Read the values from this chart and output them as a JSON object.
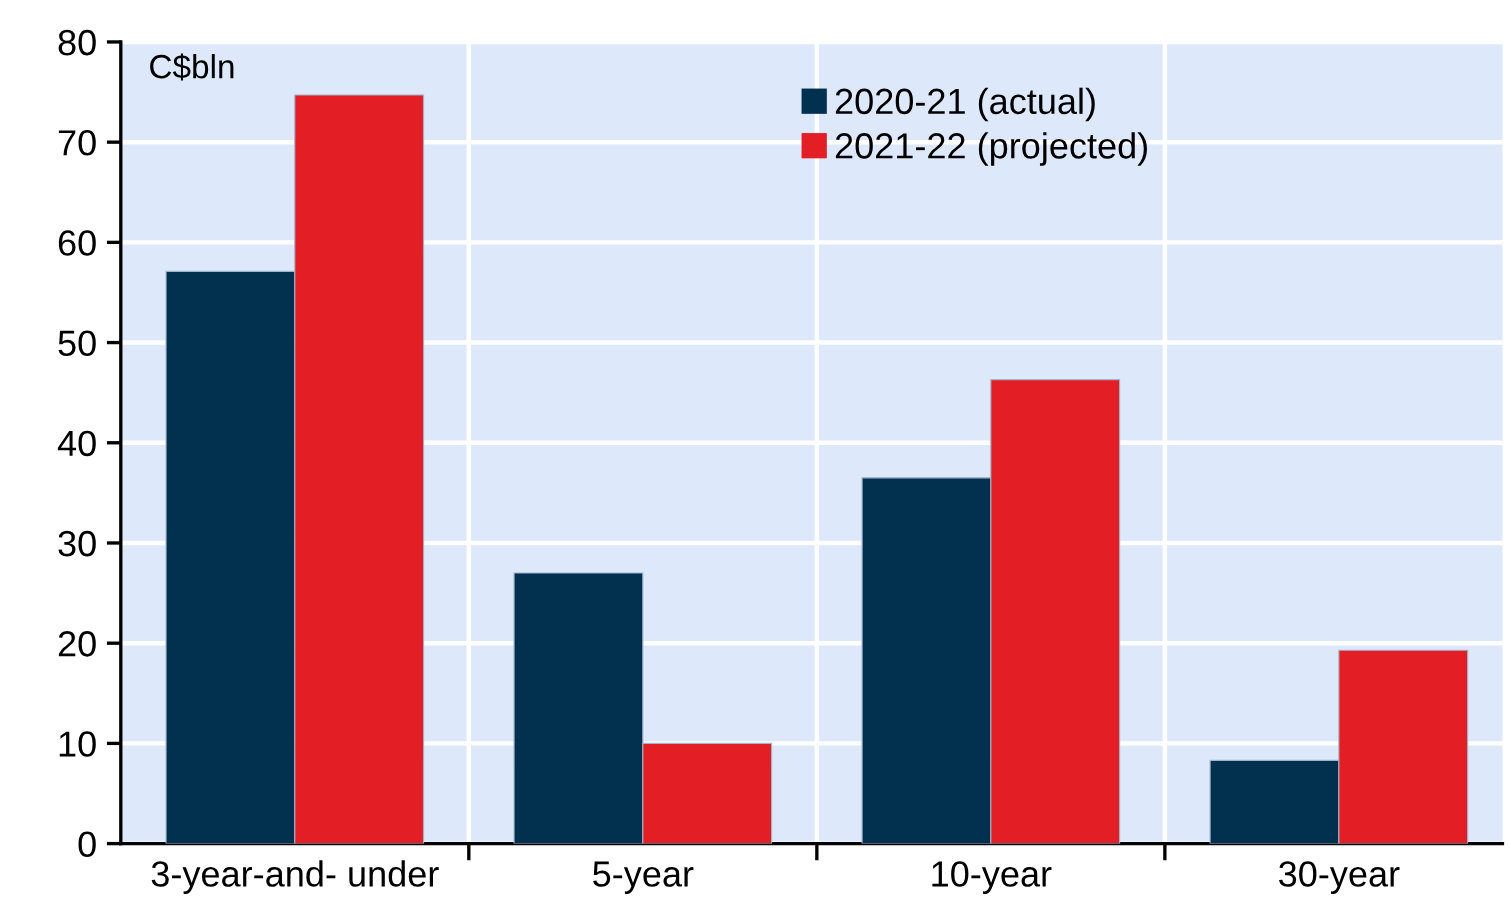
{
  "chart_data": {
    "type": "bar",
    "ylabel": "C$bln",
    "categories": [
      "3-year-and- under",
      "5-year",
      "10-year",
      "30-year"
    ],
    "series": [
      {
        "name": "2020-21 (actual)",
        "color": "#02314f",
        "values": [
          57.1,
          27.0,
          36.5,
          8.3
        ]
      },
      {
        "name": "2021-22 (projected)",
        "color": "#e31e25",
        "values": [
          74.7,
          10.0,
          46.3,
          19.3
        ]
      }
    ],
    "ylim": [
      0,
      80
    ],
    "yticks": [
      0,
      10,
      20,
      30,
      40,
      50,
      60,
      70,
      80
    ],
    "grid": true,
    "legend": "top right"
  }
}
